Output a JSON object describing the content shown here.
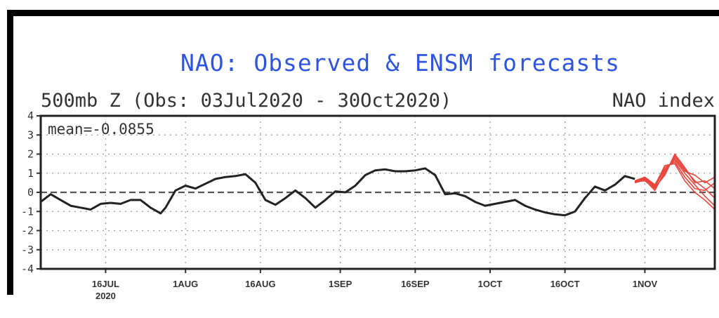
{
  "chart_data": {
    "type": "line",
    "title": "NAO: Observed & ENSM forecasts",
    "subtitle": "500mb Z (Obs: 03Jul2020 - 30Oct2020)",
    "index_label": "NAO index",
    "mean_text": "mean=-0.0855",
    "ylim": [
      -4,
      4
    ],
    "yticks": [
      -4,
      -3,
      -2,
      -1,
      0,
      1,
      2,
      3,
      4
    ],
    "ytick_labels": [
      "-4",
      "-3",
      "-2",
      "-1",
      "0",
      "1",
      "2",
      "3",
      "4"
    ],
    "xlim": [
      "2020-07-03",
      "2020-11-15"
    ],
    "xticks": [
      {
        "date": "2020-07-16",
        "label": "16JUL"
      },
      {
        "date": "2020-08-01",
        "label": "1AUG"
      },
      {
        "date": "2020-08-16",
        "label": "16AUG"
      },
      {
        "date": "2020-09-01",
        "label": "1SEP"
      },
      {
        "date": "2020-09-16",
        "label": "16SEP"
      },
      {
        "date": "2020-10-01",
        "label": "1OCT"
      },
      {
        "date": "2020-10-16",
        "label": "16OCT"
      },
      {
        "date": "2020-11-01",
        "label": "1NOV"
      }
    ],
    "x_sub_label": "2020",
    "grid": true,
    "zero_line": true,
    "colors": {
      "observed": "#222222",
      "forecast": "#e8453c",
      "title": "#2f55e0"
    },
    "observed": {
      "x": [
        "2020-07-03",
        "2020-07-05",
        "2020-07-07",
        "2020-07-09",
        "2020-07-11",
        "2020-07-13",
        "2020-07-15",
        "2020-07-17",
        "2020-07-19",
        "2020-07-21",
        "2020-07-23",
        "2020-07-25",
        "2020-07-27",
        "2020-07-28",
        "2020-07-30",
        "2020-08-01",
        "2020-08-03",
        "2020-08-05",
        "2020-08-07",
        "2020-08-09",
        "2020-08-11",
        "2020-08-13",
        "2020-08-15",
        "2020-08-17",
        "2020-08-19",
        "2020-08-21",
        "2020-08-23",
        "2020-08-25",
        "2020-08-27",
        "2020-08-29",
        "2020-08-31",
        "2020-09-02",
        "2020-09-04",
        "2020-09-06",
        "2020-09-08",
        "2020-09-10",
        "2020-09-12",
        "2020-09-14",
        "2020-09-16",
        "2020-09-18",
        "2020-09-20",
        "2020-09-22",
        "2020-09-24",
        "2020-09-26",
        "2020-09-28",
        "2020-09-30",
        "2020-10-02",
        "2020-10-04",
        "2020-10-06",
        "2020-10-08",
        "2020-10-10",
        "2020-10-12",
        "2020-10-14",
        "2020-10-16",
        "2020-10-18",
        "2020-10-20",
        "2020-10-22",
        "2020-10-24",
        "2020-10-26",
        "2020-10-28",
        "2020-10-30"
      ],
      "y": [
        -0.5,
        -0.1,
        -0.4,
        -0.7,
        -0.8,
        -0.9,
        -0.6,
        -0.55,
        -0.6,
        -0.4,
        -0.4,
        -0.8,
        -1.1,
        -0.8,
        0.1,
        0.35,
        0.2,
        0.45,
        0.7,
        0.8,
        0.85,
        0.95,
        0.5,
        -0.4,
        -0.65,
        -0.3,
        0.1,
        -0.3,
        -0.8,
        -0.4,
        0.05,
        0.0,
        0.35,
        0.9,
        1.15,
        1.2,
        1.1,
        1.1,
        1.15,
        1.25,
        0.9,
        -0.1,
        -0.05,
        -0.2,
        -0.5,
        -0.7,
        -0.6,
        -0.5,
        -0.4,
        -0.7,
        -0.9,
        -1.05,
        -1.15,
        -1.2,
        -1.0,
        -0.3,
        0.3,
        0.1,
        0.4,
        0.85,
        0.7
      ]
    },
    "forecast": {
      "x": [
        "2020-10-30",
        "2020-11-01",
        "2020-11-03",
        "2020-11-05",
        "2020-11-07",
        "2020-11-09",
        "2020-11-11",
        "2020-11-13",
        "2020-11-15"
      ],
      "members": [
        [
          0.5,
          0.7,
          0.3,
          1.2,
          1.7,
          1.0,
          0.4,
          -0.2,
          -0.7
        ],
        [
          0.55,
          0.6,
          0.2,
          1.0,
          1.9,
          1.2,
          0.6,
          0.2,
          -0.3
        ],
        [
          0.6,
          0.8,
          0.4,
          1.3,
          1.6,
          0.8,
          0.2,
          0.1,
          0.5
        ],
        [
          0.5,
          0.65,
          0.1,
          1.1,
          1.8,
          1.1,
          0.9,
          0.5,
          0.8
        ],
        [
          0.55,
          0.75,
          0.35,
          1.4,
          1.5,
          0.6,
          0.0,
          -0.4,
          -0.9
        ],
        [
          0.6,
          0.7,
          0.25,
          0.9,
          2.0,
          1.3,
          0.5,
          0.6,
          0.2
        ]
      ]
    }
  }
}
